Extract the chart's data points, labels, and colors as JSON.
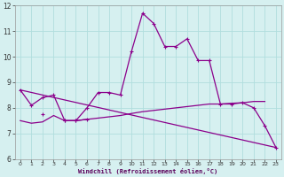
{
  "xlabel": "Windchill (Refroidissement éolien,°C)",
  "x_values": [
    0,
    1,
    2,
    3,
    4,
    5,
    6,
    7,
    8,
    9,
    10,
    11,
    12,
    13,
    14,
    15,
    16,
    17,
    18,
    19,
    20,
    21,
    22,
    23
  ],
  "line1_y": [
    8.7,
    8.1,
    8.4,
    8.5,
    7.5,
    7.5,
    8.0,
    8.6,
    8.6,
    8.5,
    10.2,
    11.7,
    11.3,
    10.4,
    10.4,
    10.7,
    9.85,
    9.85,
    8.15,
    8.15,
    8.2,
    8.0,
    7.3,
    6.45
  ],
  "line2_y": [
    null,
    null,
    7.75,
    null,
    7.5,
    7.5,
    7.55,
    null,
    null,
    null,
    null,
    null,
    null,
    null,
    null,
    null,
    null,
    null,
    null,
    null,
    null,
    null,
    null,
    null
  ],
  "line3_y": [
    7.5,
    7.4,
    7.45,
    7.7,
    7.5,
    7.5,
    7.55,
    7.6,
    7.65,
    7.7,
    7.78,
    7.85,
    7.9,
    7.95,
    8.0,
    8.05,
    8.1,
    8.15,
    8.15,
    8.18,
    8.2,
    8.25,
    8.25,
    null
  ],
  "line4_y": [
    8.7,
    null,
    null,
    null,
    null,
    null,
    null,
    null,
    null,
    null,
    null,
    null,
    null,
    null,
    null,
    null,
    null,
    null,
    null,
    null,
    null,
    null,
    null,
    6.45
  ],
  "line_color": "#8B008B",
  "bg_color": "#d6f0f0",
  "grid_color": "#b0dede",
  "ylim": [
    6,
    12
  ],
  "yticks": [
    6,
    7,
    8,
    9,
    10,
    11,
    12
  ],
  "xticks": [
    0,
    1,
    2,
    3,
    4,
    5,
    6,
    7,
    8,
    9,
    10,
    11,
    12,
    13,
    14,
    15,
    16,
    17,
    18,
    19,
    20,
    21,
    22,
    23
  ]
}
